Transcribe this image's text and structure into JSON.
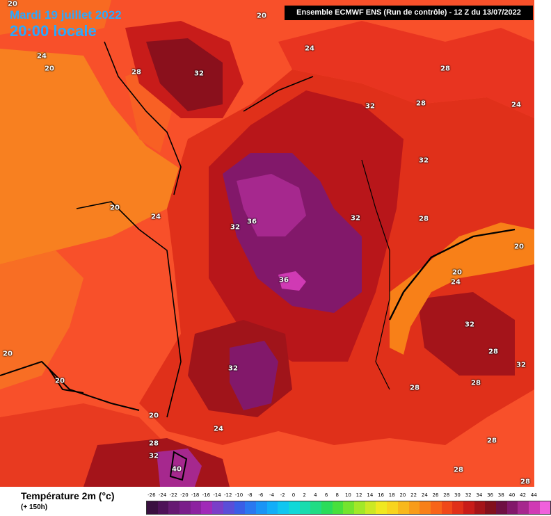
{
  "header": {
    "date": "Mardi 19 juillet 2022",
    "time": "20:00 locale",
    "model": "Ensemble ECMWF ENS  (Run de contrôle)  -  12 Z du 13/07/2022"
  },
  "legend": {
    "title": "Température 2m (°c)",
    "subtitle": "(+ 150h)",
    "ticks": [
      "-26",
      "-24",
      "-22",
      "-20",
      "-18",
      "-16",
      "-14",
      "-12",
      "-10",
      "-8",
      "-6",
      "-4",
      "-2",
      "0",
      "2",
      "4",
      "6",
      "8",
      "10",
      "12",
      "14",
      "16",
      "18",
      "20",
      "22",
      "24",
      "26",
      "28",
      "30",
      "32",
      "34",
      "36",
      "38",
      "40",
      "42",
      "44"
    ],
    "colors": [
      "#3a1040",
      "#4e1258",
      "#661a72",
      "#7a1e8a",
      "#8c22a0",
      "#a02ab8",
      "#7a3ec8",
      "#5a4ed8",
      "#3a5ee6",
      "#2a78f0",
      "#1a94f6",
      "#12aef8",
      "#10c6f0",
      "#10d8d8",
      "#18dcae",
      "#20dc84",
      "#2adc5a",
      "#48e03c",
      "#74e42e",
      "#a2e828",
      "#cce824",
      "#f0e820",
      "#f8d41e",
      "#f8b81c",
      "#f89c1a",
      "#f88018",
      "#f86418",
      "#f04818",
      "#e03018",
      "#c81c18",
      "#a41418",
      "#82101c",
      "#6e1042",
      "#82186a",
      "#a6288e",
      "#d03ab4",
      "#f060dc"
    ]
  },
  "map": {
    "labels": [
      {
        "id": "t1",
        "text": "20"
      },
      {
        "id": "t2",
        "text": "20"
      },
      {
        "id": "t3",
        "text": "24"
      },
      {
        "id": "t4",
        "text": "20"
      },
      {
        "id": "t5",
        "text": "28"
      },
      {
        "id": "t6",
        "text": "32"
      },
      {
        "id": "t7",
        "text": "24"
      },
      {
        "id": "t8",
        "text": "28"
      },
      {
        "id": "t9",
        "text": "32"
      },
      {
        "id": "t10",
        "text": "28"
      },
      {
        "id": "t11",
        "text": "24"
      },
      {
        "id": "t12",
        "text": "32"
      },
      {
        "id": "t13",
        "text": "20"
      },
      {
        "id": "t14",
        "text": "24"
      },
      {
        "id": "t15",
        "text": "32"
      },
      {
        "id": "t16",
        "text": "36"
      },
      {
        "id": "t17",
        "text": "32"
      },
      {
        "id": "t18",
        "text": "28"
      },
      {
        "id": "t19",
        "text": "20"
      },
      {
        "id": "t20",
        "text": "20"
      },
      {
        "id": "t21",
        "text": "24"
      },
      {
        "id": "t22",
        "text": "36"
      },
      {
        "id": "t23",
        "text": "32"
      },
      {
        "id": "t24",
        "text": "28"
      },
      {
        "id": "t25",
        "text": "32"
      },
      {
        "id": "t26",
        "text": "20"
      },
      {
        "id": "t27",
        "text": "32"
      },
      {
        "id": "t28",
        "text": "28"
      },
      {
        "id": "t29",
        "text": "20"
      },
      {
        "id": "t30",
        "text": "28"
      },
      {
        "id": "t31",
        "text": "24"
      },
      {
        "id": "t32",
        "text": "28"
      },
      {
        "id": "t33",
        "text": "32"
      },
      {
        "id": "t34",
        "text": "40"
      },
      {
        "id": "t35",
        "text": "28"
      },
      {
        "id": "t36",
        "text": "28"
      },
      {
        "id": "t37",
        "text": "28"
      },
      {
        "id": "t38",
        "text": "20"
      }
    ]
  }
}
